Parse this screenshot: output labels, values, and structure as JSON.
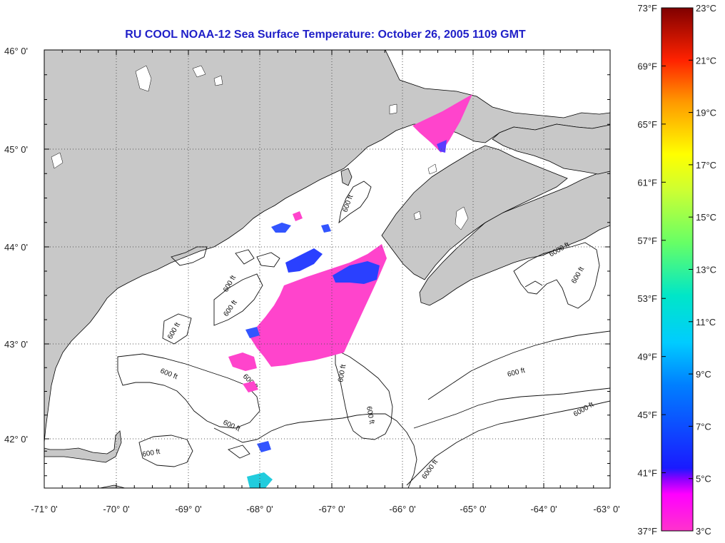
{
  "title": "RU COOL  NOAA-12  Sea Surface Temperature:  October 26, 2005 1109 GMT",
  "map": {
    "lon_range": [
      -71,
      -63
    ],
    "lat_range": [
      41.5,
      46.1
    ],
    "lon_ticks": [
      {
        "value": -71,
        "label": "-71° 0'"
      },
      {
        "value": -70,
        "label": "-70° 0'"
      },
      {
        "value": -69,
        "label": "-69° 0'"
      },
      {
        "value": -68,
        "label": "-68° 0'"
      },
      {
        "value": -67,
        "label": "-67° 0'"
      },
      {
        "value": -66,
        "label": "-66° 0'"
      },
      {
        "value": -65,
        "label": "-65° 0'"
      },
      {
        "value": -64,
        "label": "-64° 0'"
      },
      {
        "value": -63,
        "label": "-63° 0'"
      }
    ],
    "lat_ticks": [
      {
        "value": 46,
        "label": "46° 0'"
      },
      {
        "value": 45,
        "label": "45° 0'"
      },
      {
        "value": 44,
        "label": "44° 0'"
      },
      {
        "value": 43,
        "label": "43° 0'"
      },
      {
        "value": 42,
        "label": "42° 0'"
      }
    ],
    "grid": "dotted",
    "contour_labels": [
      "600 ft",
      "600 ft",
      "600 ft",
      "600 ft",
      "600 ft",
      "600 ft",
      "600 ft",
      "600 ft",
      "600 ft",
      "600 ft",
      "600 ft",
      "6000 ft",
      "6000 ft",
      "6000 ft",
      "600 ft"
    ],
    "colors": {
      "land": "#c8c8c8",
      "ocean": "#ffffff",
      "contour": "#111111",
      "coastline": "#000000",
      "grid": "#555555"
    }
  },
  "colorbar": {
    "fahrenheit_labels": [
      "73°F",
      "69°F",
      "65°F",
      "61°F",
      "57°F",
      "53°F",
      "49°F",
      "45°F",
      "41°F",
      "37°F"
    ],
    "celsius_labels": [
      "23°C",
      "21°C",
      "19°C",
      "17°C",
      "15°C",
      "13°C",
      "11°C",
      "9°C",
      "7°C",
      "5°C",
      "3°C"
    ],
    "range_celsius": [
      3,
      23
    ]
  }
}
